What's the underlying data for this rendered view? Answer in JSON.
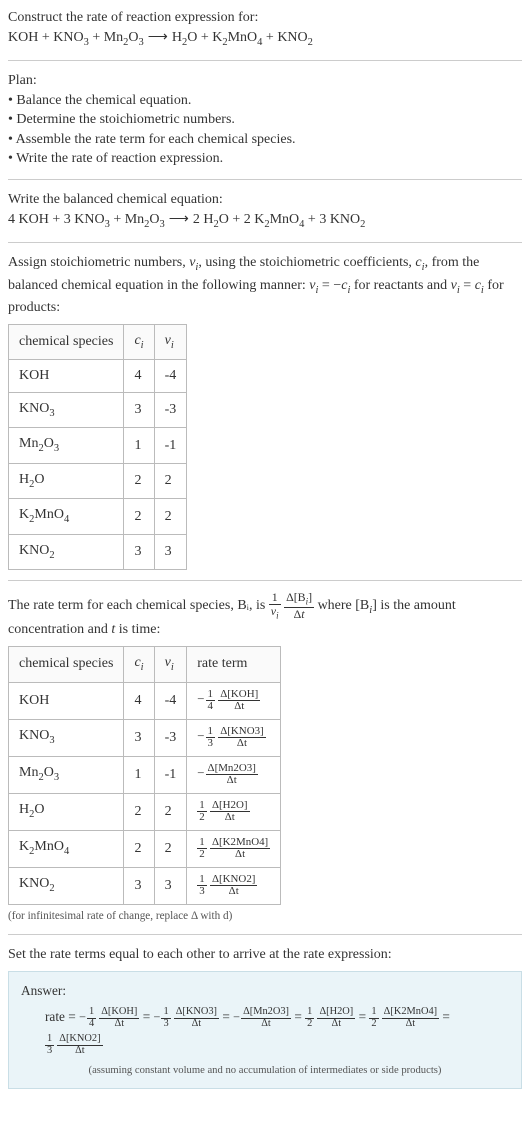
{
  "header": {
    "prompt": "Construct the rate of reaction expression for:",
    "equation_unbalanced": "KOH + KNO₃ + Mn₂O₃  ⟶  H₂O + K₂MnO₄ + KNO₂"
  },
  "plan": {
    "title": "Plan:",
    "items": [
      "Balance the chemical equation.",
      "Determine the stoichiometric numbers.",
      "Assemble the rate term for each chemical species.",
      "Write the rate of reaction expression."
    ]
  },
  "balanced": {
    "title": "Write the balanced chemical equation:",
    "equation": "4 KOH + 3 KNO₃ + Mn₂O₃  ⟶  2 H₂O + 2 K₂MnO₄ + 3 KNO₂"
  },
  "stoich_intro": "Assign stoichiometric numbers, νᵢ, using the stoichiometric coefficients, cᵢ, from the balanced chemical equation in the following manner: νᵢ = −cᵢ for reactants and νᵢ = cᵢ for products:",
  "stoich_table": {
    "headers": [
      "chemical species",
      "cᵢ",
      "νᵢ"
    ],
    "rows": [
      {
        "species": "KOH",
        "c": "4",
        "nu": "-4"
      },
      {
        "species": "KNO₃",
        "c": "3",
        "nu": "-3"
      },
      {
        "species": "Mn₂O₃",
        "c": "1",
        "nu": "-1"
      },
      {
        "species": "H₂O",
        "c": "2",
        "nu": "2"
      },
      {
        "species": "K₂MnO₄",
        "c": "2",
        "nu": "2"
      },
      {
        "species": "KNO₂",
        "c": "3",
        "nu": "3"
      }
    ]
  },
  "rate_intro_a": "The rate term for each chemical species, Bᵢ, is ",
  "rate_intro_b": " where [Bᵢ] is the amount concentration and t is time:",
  "rate_table": {
    "headers": [
      "chemical species",
      "cᵢ",
      "νᵢ",
      "rate term"
    ],
    "rows": [
      {
        "species": "KOH",
        "c": "4",
        "nu": "-4",
        "neg": true,
        "coef_num": "1",
        "coef_den": "4",
        "delta": "Δ[KOH]"
      },
      {
        "species": "KNO₃",
        "c": "3",
        "nu": "-3",
        "neg": true,
        "coef_num": "1",
        "coef_den": "3",
        "delta": "Δ[KNO3]"
      },
      {
        "species": "Mn₂O₃",
        "c": "1",
        "nu": "-1",
        "neg": true,
        "coef_num": "",
        "coef_den": "",
        "delta": "Δ[Mn2O3]"
      },
      {
        "species": "H₂O",
        "c": "2",
        "nu": "2",
        "neg": false,
        "coef_num": "1",
        "coef_den": "2",
        "delta": "Δ[H2O]"
      },
      {
        "species": "K₂MnO₄",
        "c": "2",
        "nu": "2",
        "neg": false,
        "coef_num": "1",
        "coef_den": "2",
        "delta": "Δ[K2MnO4]"
      },
      {
        "species": "KNO₂",
        "c": "3",
        "nu": "3",
        "neg": false,
        "coef_num": "1",
        "coef_den": "3",
        "delta": "Δ[KNO2]"
      }
    ],
    "note": "(for infinitesimal rate of change, replace Δ with d)"
  },
  "final_intro": "Set the rate terms equal to each other to arrive at the rate expression:",
  "answer": {
    "label": "Answer:",
    "prefix": "rate = ",
    "terms": [
      {
        "neg": true,
        "coef_num": "1",
        "coef_den": "4",
        "delta": "Δ[KOH]"
      },
      {
        "neg": true,
        "coef_num": "1",
        "coef_den": "3",
        "delta": "Δ[KNO3]"
      },
      {
        "neg": true,
        "coef_num": "",
        "coef_den": "",
        "delta": "Δ[Mn2O3]"
      },
      {
        "neg": false,
        "coef_num": "1",
        "coef_den": "2",
        "delta": "Δ[H2O]"
      },
      {
        "neg": false,
        "coef_num": "1",
        "coef_den": "2",
        "delta": "Δ[K2MnO4]"
      },
      {
        "neg": false,
        "coef_num": "1",
        "coef_den": "3",
        "delta": "Δ[KNO2]"
      }
    ],
    "note": "(assuming constant volume and no accumulation of intermediates or side products)"
  },
  "dt": "Δt",
  "colors": {
    "text": "#333333",
    "rule": "#cccccc",
    "table_border": "#bbbbbb",
    "answer_bg": "#eaf4f8",
    "answer_border": "#c9dee6",
    "note": "#555555"
  }
}
